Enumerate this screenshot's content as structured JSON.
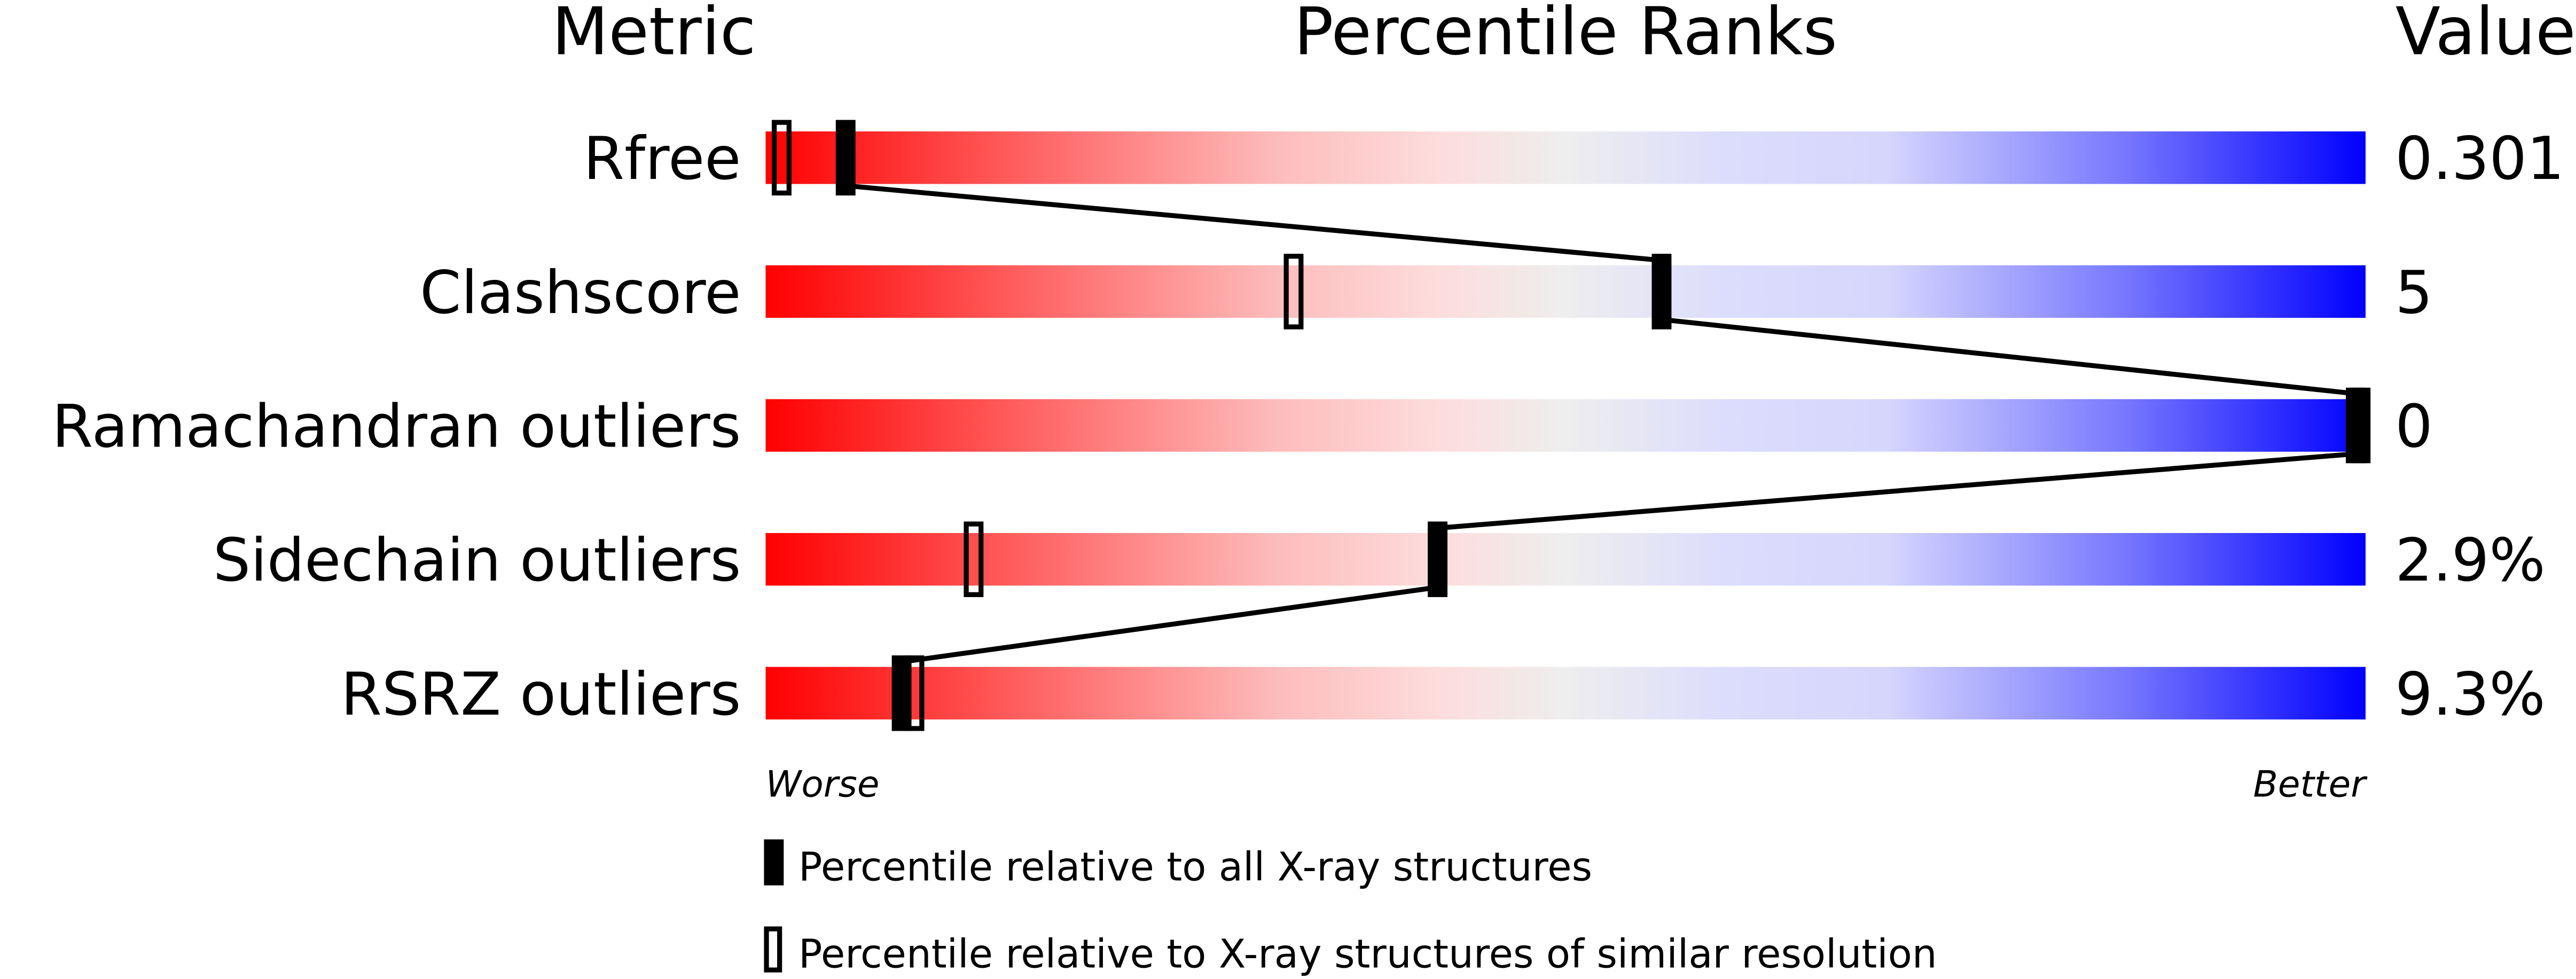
{
  "chart_data": {
    "type": "percentile-slider",
    "headers": {
      "metric": "Metric",
      "ranks": "Percentile Ranks",
      "value": "Value"
    },
    "xlim": [
      0,
      100
    ],
    "axis_ends": {
      "left": "Worse",
      "right": "Better"
    },
    "gradient_colors": [
      "#ff0000",
      "#ffe0e0",
      "#eeeeee",
      "#dcdcff",
      "#0000ff"
    ],
    "rows": [
      {
        "metric": "Rfree",
        "value": "0.301",
        "percentile_all": 5,
        "percentile_similar": 1
      },
      {
        "metric": "Clashscore",
        "value": "5",
        "percentile_all": 56,
        "percentile_similar": 33
      },
      {
        "metric": "Ramachandran outliers",
        "value": "0",
        "percentile_all": 100,
        "percentile_similar": 100
      },
      {
        "metric": "Sidechain outliers",
        "value": "2.9%",
        "percentile_all": 42,
        "percentile_similar": 13
      },
      {
        "metric": "RSRZ outliers",
        "value": "9.3%",
        "percentile_all": 8.5,
        "percentile_similar": 9.3
      }
    ],
    "legend": [
      {
        "marker": "filled",
        "label": "Percentile relative to all X-ray structures"
      },
      {
        "marker": "open",
        "label": "Percentile relative to X-ray structures of similar resolution"
      }
    ]
  }
}
